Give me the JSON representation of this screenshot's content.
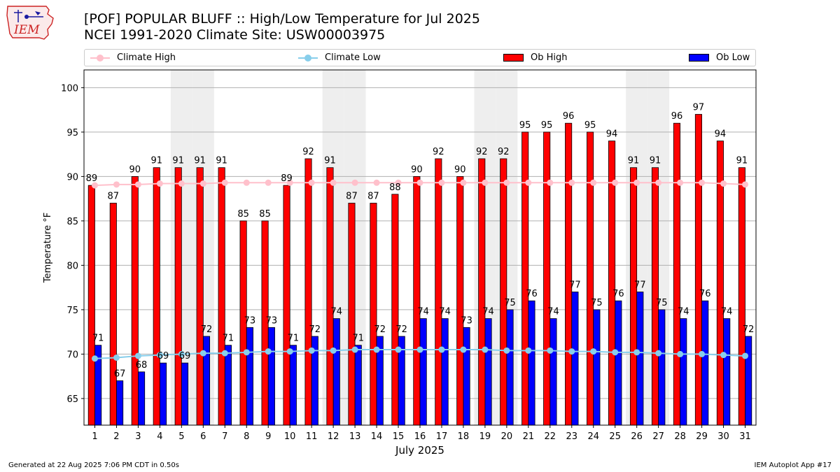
{
  "header": {
    "logo_text": "IEM",
    "title_line1": "[POF] POPULAR BLUFF :: High/Low Temperature for Jul 2025",
    "title_line2": "NCEI 1991-2020 Climate Site: USW00003975"
  },
  "legend": [
    {
      "label": "Climate High",
      "color": "#ffc0cb",
      "kind": "line"
    },
    {
      "label": "Climate Low",
      "color": "#87ceeb",
      "kind": "line"
    },
    {
      "label": "Ob High",
      "color": "#ff0000",
      "kind": "bar"
    },
    {
      "label": "Ob Low",
      "color": "#0000ff",
      "kind": "bar"
    }
  ],
  "footer": {
    "left": "Generated at 22 Aug 2025 7:06 PM CDT in 0.50s",
    "right": "IEM Autoplot App #17"
  },
  "chart_data": {
    "type": "bar",
    "xlabel": "July 2025",
    "ylabel": "Temperature °F",
    "ylim": [
      62,
      102
    ],
    "yticks": [
      65,
      70,
      75,
      80,
      85,
      90,
      95,
      100
    ],
    "grid": "horizontal",
    "weekend_shading_days": [
      5,
      6,
      12,
      13,
      19,
      20,
      26,
      27
    ],
    "categories": [
      "1",
      "2",
      "3",
      "4",
      "5",
      "6",
      "7",
      "8",
      "9",
      "10",
      "11",
      "12",
      "13",
      "14",
      "15",
      "16",
      "17",
      "18",
      "19",
      "20",
      "21",
      "22",
      "23",
      "24",
      "25",
      "26",
      "27",
      "28",
      "29",
      "30",
      "31"
    ],
    "series": [
      {
        "name": "Ob High",
        "kind": "bar",
        "color": "#ff0000",
        "values": [
          89,
          87,
          90,
          91,
          91,
          91,
          91,
          85,
          85,
          89,
          92,
          91,
          87,
          87,
          88,
          90,
          92,
          90,
          92,
          92,
          95,
          95,
          96,
          95,
          94,
          91,
          91,
          96,
          97,
          94,
          91
        ]
      },
      {
        "name": "Ob Low",
        "kind": "bar",
        "color": "#0000ff",
        "values": [
          71,
          67,
          68,
          69,
          69,
          72,
          71,
          73,
          73,
          71,
          72,
          74,
          71,
          72,
          72,
          74,
          74,
          73,
          74,
          75,
          76,
          74,
          77,
          75,
          76,
          77,
          75,
          74,
          76,
          74,
          72
        ]
      },
      {
        "name": "Climate High",
        "kind": "line",
        "color": "#ffc0cb",
        "values": [
          89.0,
          89.1,
          89.1,
          89.2,
          89.2,
          89.2,
          89.3,
          89.3,
          89.3,
          89.3,
          89.3,
          89.3,
          89.3,
          89.3,
          89.3,
          89.3,
          89.3,
          89.3,
          89.3,
          89.3,
          89.3,
          89.3,
          89.3,
          89.3,
          89.3,
          89.3,
          89.3,
          89.3,
          89.3,
          89.2,
          89.1
        ]
      },
      {
        "name": "Climate Low",
        "kind": "line",
        "color": "#87ceeb",
        "values": [
          69.5,
          69.6,
          69.8,
          69.9,
          70.0,
          70.1,
          70.1,
          70.2,
          70.3,
          70.3,
          70.4,
          70.4,
          70.5,
          70.5,
          70.5,
          70.5,
          70.5,
          70.5,
          70.5,
          70.4,
          70.4,
          70.4,
          70.3,
          70.3,
          70.2,
          70.2,
          70.1,
          70.0,
          70.0,
          69.9,
          69.8
        ]
      }
    ]
  }
}
